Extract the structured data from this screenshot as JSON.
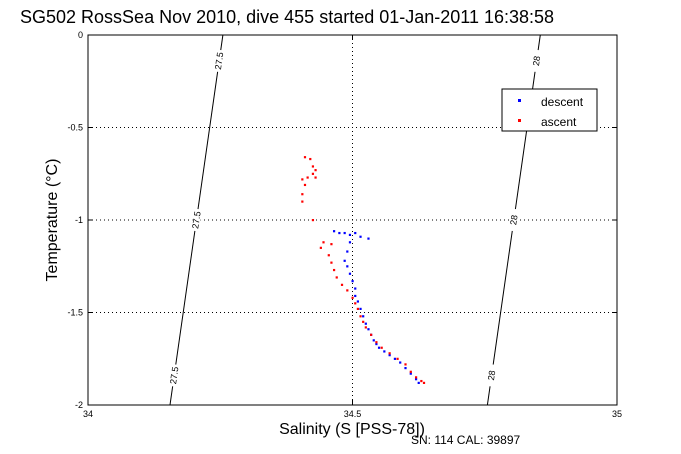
{
  "chart_data": {
    "type": "scatter",
    "title": "SG502 RossSea Nov 2010, dive 455 started 01-Jan-2011 16:38:58",
    "xlabel": "Salinity (S [PSS-78])",
    "ylabel": "Temperature (°C)",
    "footer": "SN: 114  CAL: 39897",
    "xlim": [
      34,
      35
    ],
    "ylim": [
      -2,
      0
    ],
    "xticks": [
      "34",
      "34.5",
      "35"
    ],
    "yticks": [
      "0",
      "-0.5",
      "-1",
      "-1.5",
      "-2"
    ],
    "grid": true,
    "legend_position": "top-right",
    "colors": {
      "descent": "#0000ff",
      "ascent": "#ff0000",
      "isopycnal": "#000000"
    },
    "isopycnals": [
      {
        "label": "27.5",
        "bottom_x": 34.155,
        "top_x": 34.255
      },
      {
        "label": "28",
        "bottom_x": 34.755,
        "top_x": 34.855
      }
    ],
    "series": [
      {
        "name": "descent",
        "points": [
          [
            34.465,
            -1.06
          ],
          [
            34.475,
            -1.07
          ],
          [
            34.485,
            -1.07
          ],
          [
            34.495,
            -1.08
          ],
          [
            34.505,
            -1.07
          ],
          [
            34.515,
            -1.09
          ],
          [
            34.53,
            -1.1
          ],
          [
            34.495,
            -1.12
          ],
          [
            34.49,
            -1.17
          ],
          [
            34.485,
            -1.22
          ],
          [
            34.49,
            -1.25
          ],
          [
            34.495,
            -1.29
          ],
          [
            34.5,
            -1.33
          ],
          [
            34.505,
            -1.37
          ],
          [
            34.505,
            -1.41
          ],
          [
            34.51,
            -1.44
          ],
          [
            34.515,
            -1.48
          ],
          [
            34.52,
            -1.52
          ],
          [
            34.525,
            -1.56
          ],
          [
            34.53,
            -1.59
          ],
          [
            34.535,
            -1.62
          ],
          [
            34.54,
            -1.65
          ],
          [
            34.545,
            -1.67
          ],
          [
            34.55,
            -1.69
          ],
          [
            34.56,
            -1.71
          ],
          [
            34.57,
            -1.73
          ],
          [
            34.58,
            -1.75
          ],
          [
            34.59,
            -1.77
          ],
          [
            34.6,
            -1.8
          ],
          [
            34.61,
            -1.83
          ],
          [
            34.62,
            -1.86
          ],
          [
            34.625,
            -1.88
          ]
        ]
      },
      {
        "name": "ascent",
        "points": [
          [
            34.41,
            -0.66
          ],
          [
            34.42,
            -0.67
          ],
          [
            34.425,
            -0.71
          ],
          [
            34.43,
            -0.73
          ],
          [
            34.425,
            -0.75
          ],
          [
            34.43,
            -0.77
          ],
          [
            34.415,
            -0.77
          ],
          [
            34.405,
            -0.78
          ],
          [
            34.41,
            -0.81
          ],
          [
            34.405,
            -0.86
          ],
          [
            34.405,
            -0.9
          ],
          [
            34.425,
            -1.0
          ],
          [
            34.445,
            -1.12
          ],
          [
            34.46,
            -1.13
          ],
          [
            34.44,
            -1.15
          ],
          [
            34.455,
            -1.19
          ],
          [
            34.46,
            -1.23
          ],
          [
            34.465,
            -1.27
          ],
          [
            34.47,
            -1.31
          ],
          [
            34.48,
            -1.35
          ],
          [
            34.49,
            -1.38
          ],
          [
            34.5,
            -1.42
          ],
          [
            34.505,
            -1.45
          ],
          [
            34.51,
            -1.48
          ],
          [
            34.515,
            -1.52
          ],
          [
            34.52,
            -1.55
          ],
          [
            34.525,
            -1.58
          ],
          [
            34.535,
            -1.62
          ],
          [
            34.545,
            -1.66
          ],
          [
            34.555,
            -1.69
          ],
          [
            34.57,
            -1.72
          ],
          [
            34.585,
            -1.75
          ],
          [
            34.6,
            -1.78
          ],
          [
            34.61,
            -1.82
          ],
          [
            34.62,
            -1.85
          ],
          [
            34.63,
            -1.87
          ],
          [
            34.635,
            -1.88
          ]
        ]
      }
    ]
  }
}
